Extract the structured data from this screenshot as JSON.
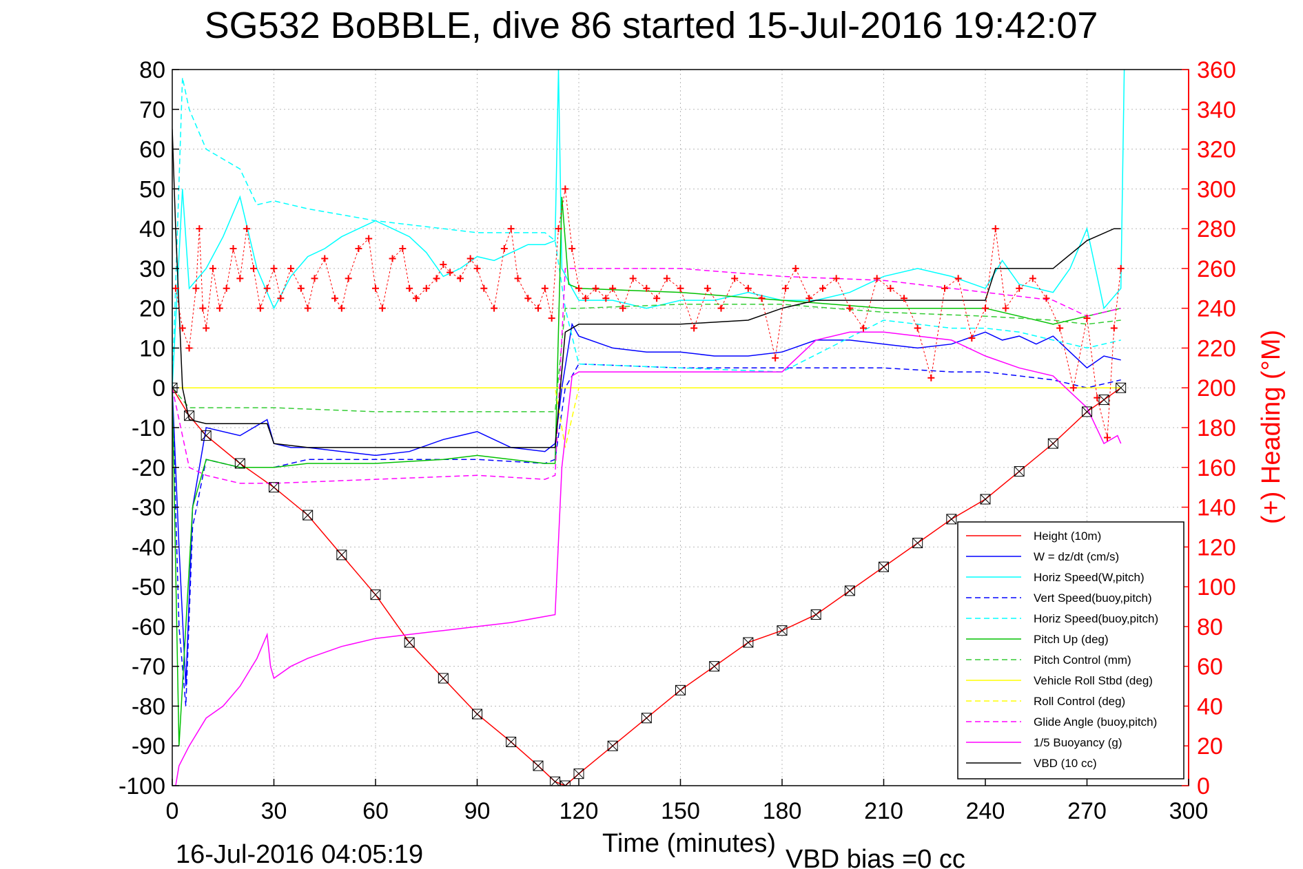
{
  "chart_data": {
    "type": "line",
    "title": "SG532 BoBBLE, dive 86 started 15-Jul-2016 19:42:07",
    "xlabel": "Time (minutes)",
    "ylabel": "",
    "y2label": "(+) Heading (°M)",
    "xlim": [
      0,
      300
    ],
    "ylim": [
      -100,
      80
    ],
    "y2lim": [
      0,
      360
    ],
    "grid": true,
    "legend_position": "bottom-right",
    "footer_left": "16-Jul-2016 04:05:19",
    "footer_center": "VBD bias =0 cc",
    "x_ticks": [
      "0",
      "30",
      "60",
      "90",
      "120",
      "150",
      "180",
      "210",
      "240",
      "270",
      "300"
    ],
    "y_ticks": [
      "80",
      "70",
      "60",
      "50",
      "40",
      "30",
      "20",
      "10",
      "0",
      "-10",
      "-20",
      "-30",
      "-40",
      "-50",
      "-60",
      "-70",
      "-80",
      "-90",
      "-100"
    ],
    "y2_ticks": [
      "360",
      "340",
      "320",
      "300",
      "280",
      "260",
      "240",
      "220",
      "200",
      "180",
      "160",
      "140",
      "120",
      "100",
      "80",
      "60",
      "40",
      "20",
      "0"
    ],
    "series": [
      {
        "name": "Height (10m)",
        "color": "#ff0000",
        "style": "solid",
        "axis": "left",
        "x": [
          0,
          5,
          10,
          20,
          30,
          40,
          50,
          60,
          70,
          80,
          90,
          100,
          108,
          113,
          116,
          120,
          130,
          140,
          150,
          160,
          170,
          180,
          190,
          200,
          210,
          220,
          230,
          240,
          250,
          260,
          270,
          275,
          280
        ],
        "y": [
          0,
          -7,
          -12,
          -19,
          -25,
          -32,
          -42,
          -52,
          -64,
          -73,
          -82,
          -89,
          -95,
          -99,
          -100,
          -97,
          -90,
          -83,
          -76,
          -70,
          -64,
          -61,
          -57,
          -51,
          -45,
          -39,
          -33,
          -28,
          -21,
          -14,
          -6,
          -3,
          0
        ]
      },
      {
        "name": "W = dz/dt (cm/s)",
        "color": "#0000ff",
        "style": "solid",
        "axis": "left",
        "x": [
          0,
          2,
          4,
          6,
          10,
          20,
          28,
          30,
          35,
          40,
          50,
          60,
          70,
          80,
          85,
          90,
          100,
          110,
          113,
          115,
          118,
          120,
          130,
          140,
          150,
          160,
          170,
          180,
          190,
          200,
          210,
          220,
          230,
          240,
          245,
          250,
          255,
          260,
          265,
          270,
          275,
          280
        ],
        "y": [
          0,
          -40,
          -75,
          -30,
          -10,
          -12,
          -8,
          -14,
          -15,
          -15,
          -16,
          -17,
          -16,
          -13,
          -12,
          -11,
          -15,
          -16,
          -14,
          0,
          16,
          13,
          10,
          9,
          9,
          8,
          8,
          9,
          12,
          12,
          11,
          10,
          11,
          14,
          12,
          13,
          11,
          13,
          9,
          5,
          8,
          7
        ]
      },
      {
        "name": "Horiz Speed(W,pitch)",
        "color": "#00ffff",
        "style": "solid",
        "axis": "left",
        "x": [
          0,
          3,
          5,
          10,
          15,
          20,
          25,
          30,
          35,
          40,
          45,
          50,
          55,
          60,
          65,
          70,
          75,
          80,
          85,
          90,
          95,
          100,
          105,
          110,
          113,
          114,
          115,
          118,
          120,
          130,
          140,
          150,
          160,
          170,
          180,
          190,
          200,
          210,
          220,
          230,
          240,
          245,
          250,
          260,
          265,
          270,
          275,
          280,
          281
        ],
        "y": [
          0,
          50,
          25,
          30,
          38,
          48,
          30,
          20,
          28,
          33,
          35,
          38,
          40,
          42,
          40,
          38,
          34,
          28,
          30,
          33,
          32,
          34,
          36,
          36,
          37,
          80,
          30,
          25,
          22,
          22,
          20,
          22,
          22,
          24,
          22,
          22,
          24,
          28,
          30,
          28,
          25,
          32,
          26,
          24,
          30,
          40,
          20,
          25,
          80
        ]
      },
      {
        "name": "Vert Speed(buoy,pitch)",
        "color": "#0000ff",
        "style": "dashed",
        "axis": "left",
        "x": [
          0,
          2,
          4,
          6,
          10,
          20,
          30,
          40,
          60,
          80,
          90,
          110,
          113,
          116,
          120,
          150,
          180,
          210,
          230,
          240,
          250,
          260,
          270,
          280
        ],
        "y": [
          0,
          -60,
          -80,
          -35,
          -18,
          -20,
          -20,
          -18,
          -18,
          -18,
          -18,
          -19,
          -18,
          0,
          6,
          5,
          5,
          5,
          4,
          4,
          3,
          2,
          0,
          2
        ]
      },
      {
        "name": "Horiz Speed(buoy,pitch)",
        "color": "#00ffff",
        "style": "dashed",
        "axis": "left",
        "x": [
          0,
          3,
          5,
          10,
          20,
          25,
          30,
          40,
          60,
          80,
          90,
          110,
          113,
          116,
          120,
          150,
          180,
          210,
          230,
          240,
          250,
          260,
          270,
          280
        ],
        "y": [
          0,
          78,
          70,
          60,
          55,
          46,
          47,
          45,
          42,
          40,
          39,
          39,
          37,
          20,
          6,
          5,
          4,
          17,
          15,
          15,
          14,
          12,
          10,
          12
        ]
      },
      {
        "name": "Pitch Up (deg)",
        "color": "#00c000",
        "style": "solid",
        "axis": "left",
        "x": [
          0,
          2,
          4,
          6,
          10,
          20,
          30,
          40,
          60,
          80,
          90,
          110,
          113,
          115,
          117,
          120,
          150,
          180,
          210,
          240,
          250,
          260,
          270,
          280
        ],
        "y": [
          0,
          -90,
          -60,
          -30,
          -18,
          -20,
          -20,
          -19,
          -19,
          -18,
          -17,
          -19,
          -19,
          48,
          26,
          25,
          24,
          22,
          20,
          20,
          18,
          16,
          18,
          20
        ]
      },
      {
        "name": "Pitch Control (mm)",
        "color": "#33cc33",
        "style": "dashed",
        "axis": "left",
        "x": [
          0,
          5,
          20,
          28,
          30,
          60,
          90,
          110,
          113,
          116,
          120,
          150,
          180,
          210,
          240,
          260,
          270,
          280
        ],
        "y": [
          0,
          -5,
          -5,
          -5,
          -5,
          -6,
          -6,
          -6,
          -6,
          20,
          20,
          21,
          21,
          19,
          18,
          17,
          16,
          17
        ]
      },
      {
        "name": "Vehicle Roll Stbd (deg)",
        "color": "#ffff00",
        "style": "solid",
        "axis": "left",
        "x": [
          0,
          10,
          20,
          30,
          60,
          90,
          113,
          116,
          120,
          150,
          180,
          210,
          240,
          270,
          280
        ],
        "y": [
          0,
          0,
          0,
          0,
          0,
          0,
          0,
          0,
          0,
          0,
          0,
          0,
          0,
          0,
          0
        ]
      },
      {
        "name": "Roll Control (deg)",
        "color": "#ffff00",
        "style": "dashed",
        "axis": "left",
        "x": [
          0,
          30,
          60,
          90,
          113,
          116,
          120,
          150,
          180,
          210,
          240,
          270,
          280
        ],
        "y": [
          0,
          0,
          0,
          0,
          0,
          -15,
          0,
          0,
          0,
          0,
          0,
          0,
          0
        ]
      },
      {
        "name": "Glide Angle (buoy,pitch)",
        "color": "#ff00ff",
        "style": "dashed",
        "axis": "left",
        "x": [
          0,
          5,
          10,
          20,
          30,
          60,
          90,
          110,
          113,
          116,
          120,
          150,
          180,
          210,
          240,
          260,
          270,
          280
        ],
        "y": [
          0,
          -20,
          -22,
          -24,
          -24,
          -23,
          -22,
          -23,
          -22,
          30,
          30,
          30,
          28,
          27,
          24,
          22,
          18,
          20
        ]
      },
      {
        "name": "1/5 Buoyancy (g)",
        "color": "#ff00ff",
        "style": "solid",
        "axis": "left",
        "x": [
          1,
          2,
          5,
          10,
          15,
          20,
          25,
          28,
          29,
          30,
          35,
          40,
          50,
          60,
          70,
          80,
          90,
          100,
          113,
          115,
          118,
          120,
          150,
          180,
          190,
          200,
          210,
          230,
          240,
          250,
          260,
          270,
          275,
          279,
          280
        ],
        "y": [
          -100,
          -95,
          -90,
          -83,
          -80,
          -75,
          -68,
          -62,
          -70,
          -73,
          -70,
          -68,
          -65,
          -63,
          -62,
          -61,
          -60,
          -59,
          -57,
          -20,
          3,
          4,
          4,
          4,
          12,
          14,
          14,
          12,
          8,
          5,
          3,
          -5,
          -14,
          -12,
          -14
        ]
      },
      {
        "name": "VBD (10 cc)",
        "color": "#000000",
        "style": "solid",
        "axis": "left",
        "x": [
          0,
          1,
          3,
          5,
          10,
          20,
          28,
          30,
          40,
          60,
          80,
          90,
          110,
          113,
          116,
          118,
          120,
          150,
          170,
          180,
          190,
          200,
          210,
          240,
          243,
          260,
          270,
          278,
          280
        ],
        "y": [
          65,
          40,
          0,
          -8,
          -9,
          -9,
          -9,
          -14,
          -15,
          -15,
          -15,
          -15,
          -15,
          -15,
          14,
          15,
          16,
          16,
          17,
          20,
          22,
          22,
          22,
          22,
          30,
          30,
          37,
          40,
          40
        ]
      },
      {
        "name": "Heading",
        "color": "#ff0000",
        "style": "markers-plus",
        "axis": "right",
        "x": [
          1,
          3,
          5,
          7,
          8,
          9,
          10,
          12,
          14,
          16,
          18,
          20,
          22,
          24,
          26,
          28,
          30,
          32,
          35,
          38,
          40,
          42,
          45,
          48,
          50,
          52,
          55,
          58,
          60,
          62,
          65,
          68,
          70,
          72,
          75,
          78,
          80,
          82,
          85,
          88,
          90,
          92,
          95,
          98,
          100,
          102,
          105,
          108,
          110,
          112,
          114,
          116,
          118,
          120,
          122,
          125,
          128,
          130,
          133,
          136,
          140,
          143,
          146,
          150,
          154,
          158,
          162,
          166,
          170,
          174,
          178,
          181,
          184,
          188,
          192,
          196,
          200,
          204,
          208,
          212,
          216,
          220,
          224,
          228,
          232,
          236,
          240,
          243,
          246,
          250,
          254,
          258,
          262,
          266,
          270,
          273,
          276,
          278,
          280
        ],
        "y": [
          250,
          230,
          220,
          250,
          280,
          240,
          230,
          260,
          240,
          250,
          270,
          255,
          280,
          260,
          240,
          250,
          260,
          245,
          260,
          250,
          240,
          255,
          265,
          245,
          240,
          255,
          270,
          275,
          250,
          240,
          265,
          270,
          250,
          245,
          250,
          255,
          262,
          258,
          255,
          265,
          260,
          250,
          240,
          270,
          280,
          255,
          245,
          240,
          250,
          235,
          280,
          300,
          270,
          250,
          245,
          250,
          245,
          250,
          240,
          255,
          250,
          245,
          255,
          250,
          230,
          250,
          240,
          255,
          250,
          245,
          215,
          250,
          260,
          245,
          250,
          255,
          240,
          230,
          255,
          250,
          245,
          230,
          205,
          250,
          255,
          225,
          240,
          280,
          240,
          250,
          255,
          245,
          230,
          200,
          235,
          195,
          175,
          230,
          260
        ]
      }
    ]
  }
}
